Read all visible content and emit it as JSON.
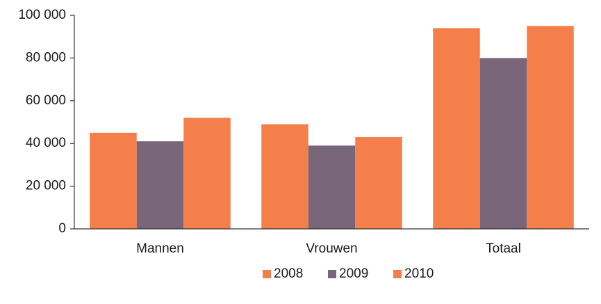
{
  "chart_data": {
    "type": "bar",
    "categories": [
      "Mannen",
      "Vrouwen",
      "Totaal"
    ],
    "series": [
      {
        "name": "2008",
        "color": "#f47f4a",
        "values": [
          45000,
          49000,
          94000
        ]
      },
      {
        "name": "2009",
        "color": "#7a6679",
        "values": [
          41000,
          39000,
          80000
        ]
      },
      {
        "name": "2010",
        "color": "#f47f4a",
        "values": [
          52000,
          43000,
          95000
        ]
      }
    ],
    "ylim": [
      0,
      100000
    ],
    "yticks": [
      0,
      {
        "value": 20000,
        "label": "20 000"
      },
      {
        "value": 40000,
        "label": "40 000"
      },
      {
        "value": 60000,
        "label": "60 000"
      },
      {
        "value": 80000,
        "label": "80 000"
      },
      {
        "value": 100000,
        "label": "100 000"
      }
    ],
    "grid": false,
    "legend": "bottom"
  }
}
